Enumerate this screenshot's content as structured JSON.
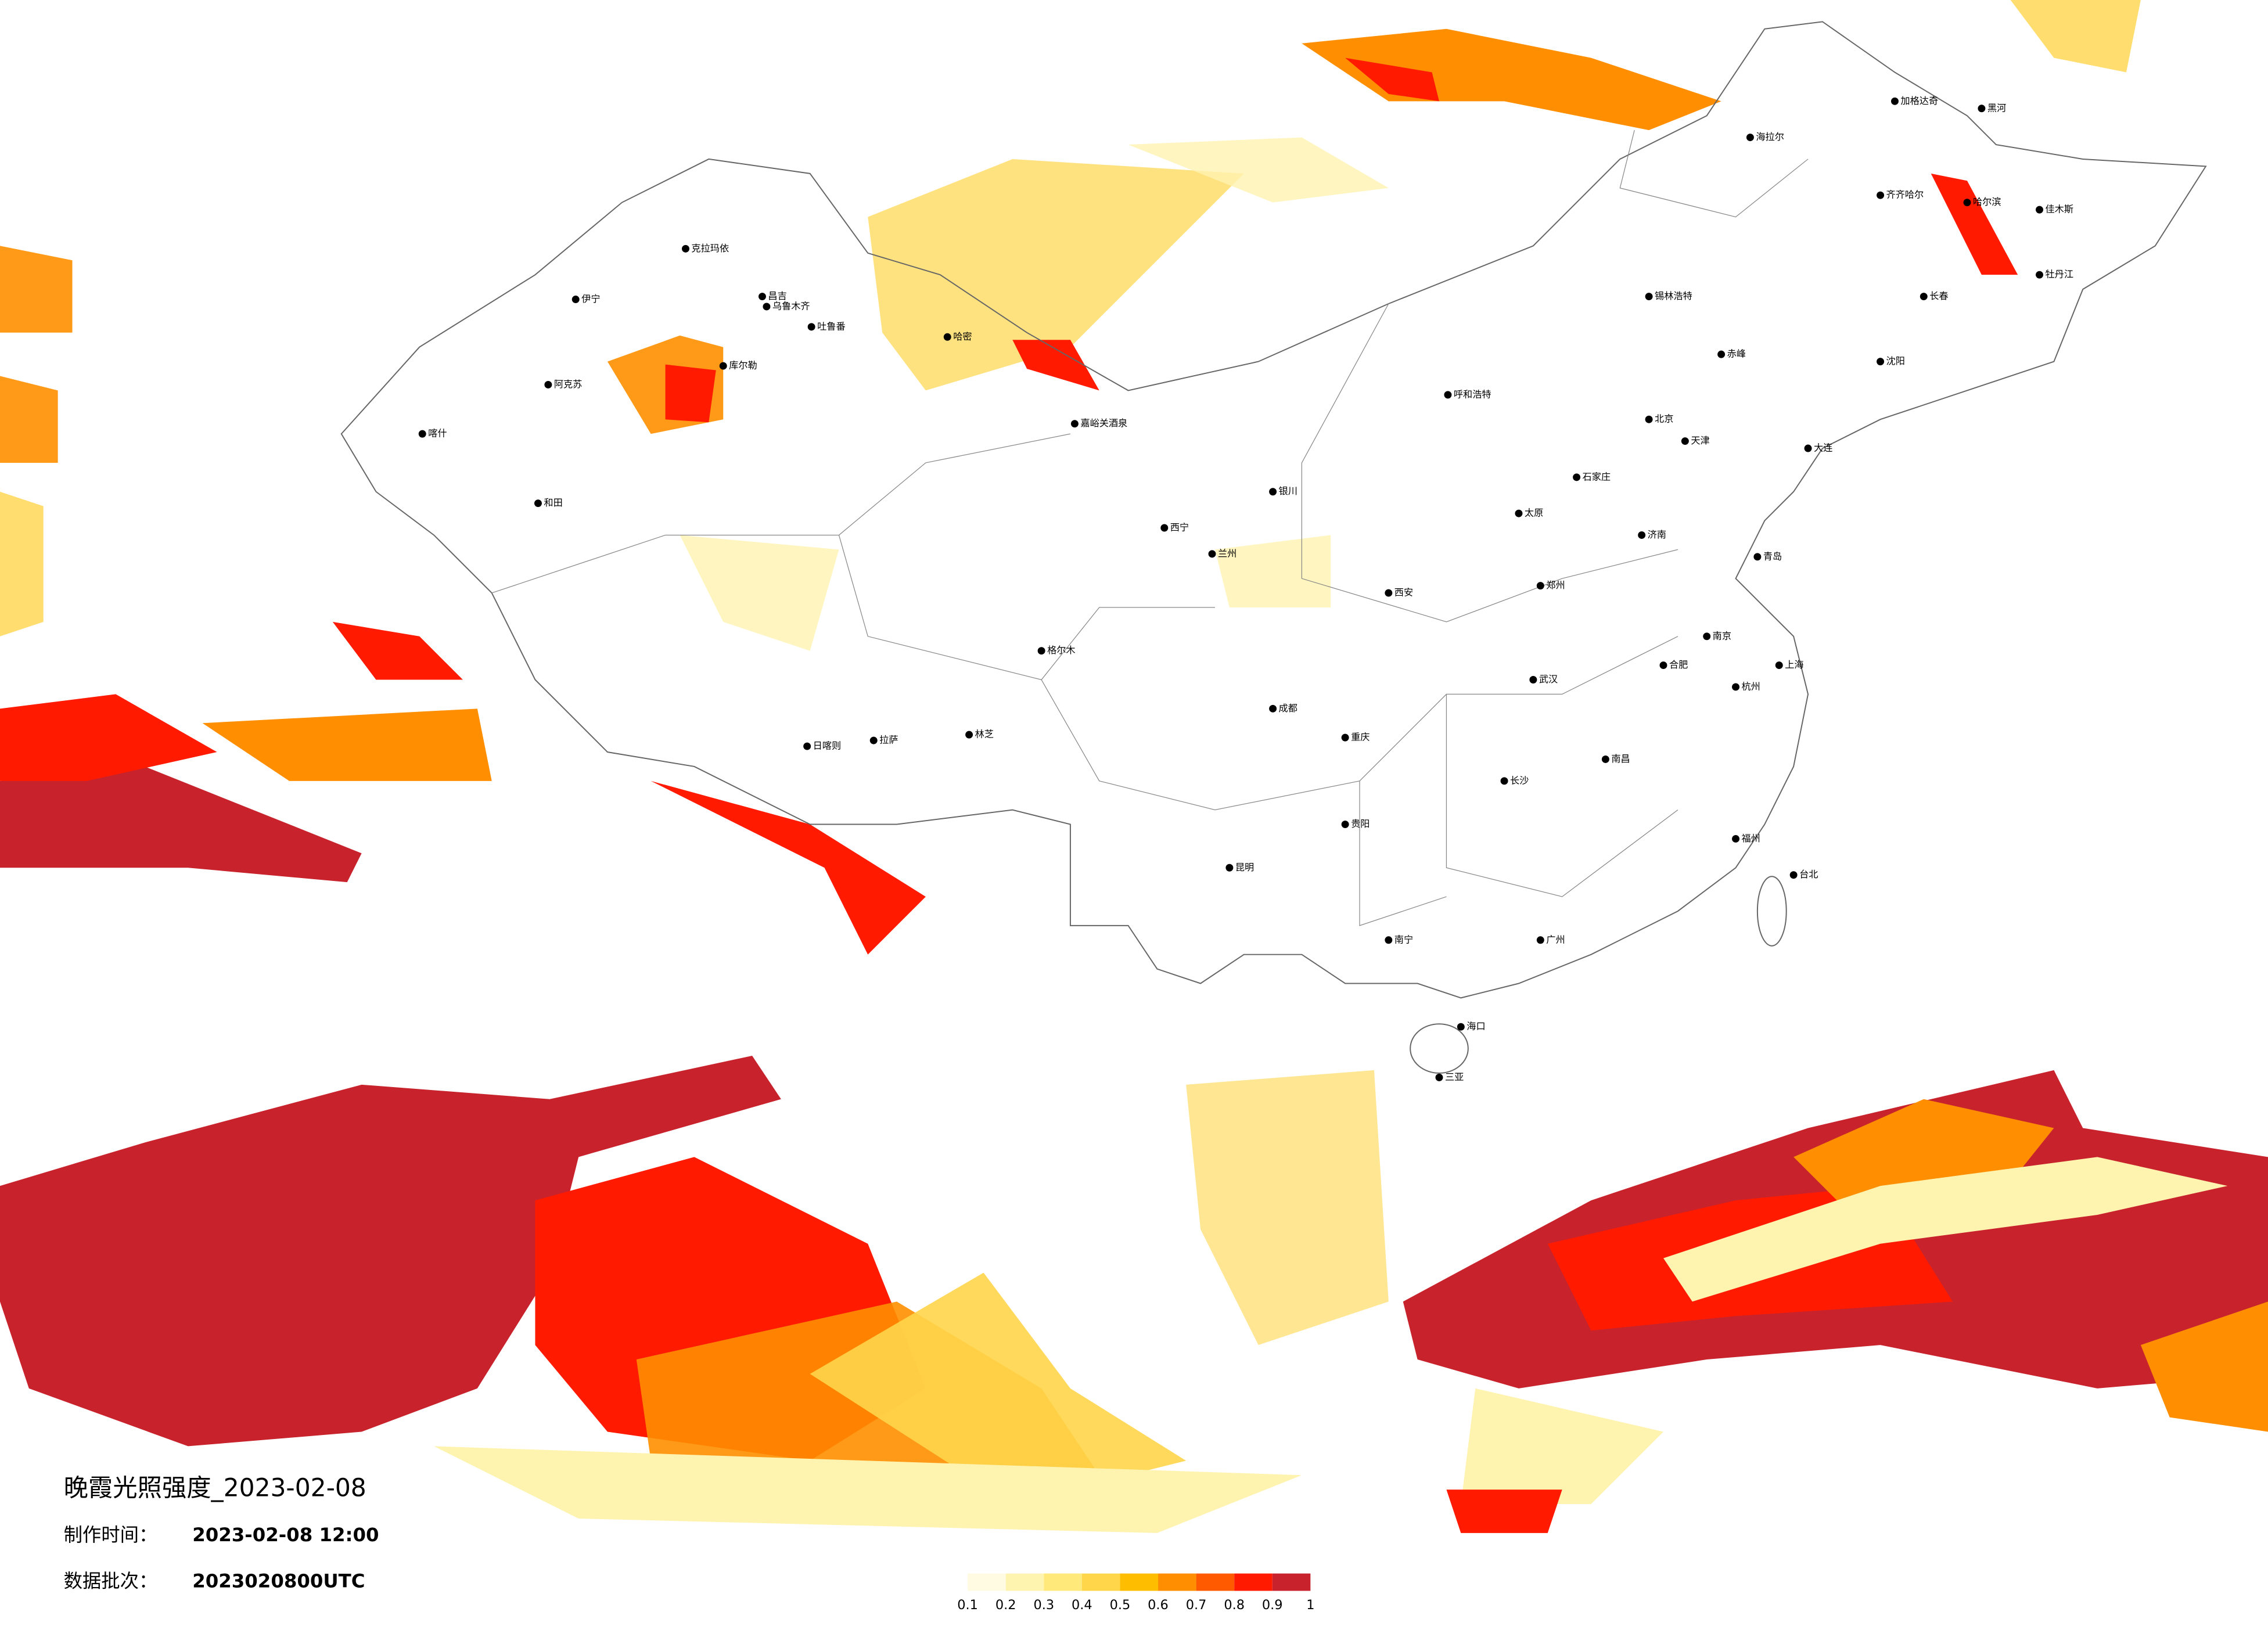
{
  "title": "晚霞光照强度_2023-02-08",
  "made_time": {
    "label": "制作时间：",
    "value": "2023-02-08 12:00"
  },
  "batch": {
    "label": "数据批次：",
    "value": "2023020800UTC"
  },
  "colorbar": {
    "colors": [
      "#fffbe3",
      "#fff3b0",
      "#ffe97a",
      "#ffd54a",
      "#ffbd00",
      "#ff8f00",
      "#ff5a00",
      "#ff1a00",
      "#c8232c"
    ],
    "ticks": [
      0.1,
      0.2,
      0.3,
      0.4,
      0.5,
      0.6,
      0.7,
      0.8,
      0.9,
      1
    ]
  },
  "cities": [
    "克拉玛依",
    "伊宁",
    "昌吉",
    "乌鲁木齐",
    "吐鲁番",
    "库尔勒",
    "阿克苏",
    "喀什",
    "和田",
    "哈密",
    "嘉峪关酒泉",
    "西宁",
    "兰州",
    "银川",
    "格尔木",
    "拉萨",
    "日喀则",
    "林芝",
    "呼和浩特",
    "北京",
    "天津",
    "石家庄",
    "太原",
    "济南",
    "郑州",
    "西安",
    "武汉",
    "长沙",
    "南昌",
    "南京",
    "上海",
    "杭州",
    "福州",
    "广州",
    "南宁",
    "贵阳",
    "昆明",
    "重庆",
    "成都",
    "海口",
    "三亚",
    "台北",
    "哈尔滨",
    "长春",
    "沈阳",
    "齐齐哈尔",
    "海拉尔",
    "锡林浩特",
    "加格达奇",
    "黑河",
    "佳木斯",
    "牡丹江",
    "赤峰",
    "大连",
    "青岛",
    "合肥"
  ]
}
